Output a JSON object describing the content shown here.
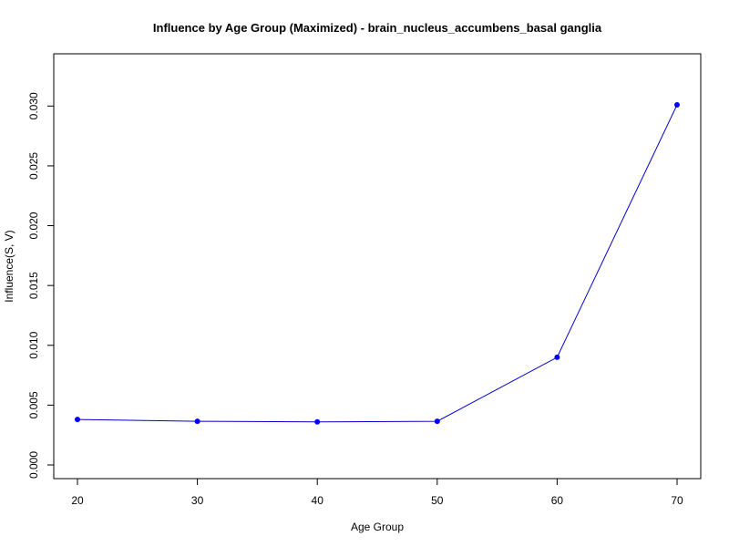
{
  "chart_data": {
    "type": "line",
    "title": "Influence by Age Group (Maximized) - brain_nucleus_accumbens_basal ganglia",
    "xlabel": "Age Group",
    "ylabel": "Influence(S, V)",
    "x": [
      20,
      30,
      40,
      50,
      60,
      70
    ],
    "series": [
      {
        "values": [
          0.0038,
          0.00365,
          0.0036,
          0.00365,
          0.009,
          0.0301
        ]
      }
    ],
    "xlim": [
      20,
      70
    ],
    "ylim": [
      0.0,
      0.0301
    ],
    "xticks": [
      "20",
      "30",
      "40",
      "50",
      "60",
      "70"
    ],
    "yticks": [
      "0.000",
      "0.005",
      "0.010",
      "0.015",
      "0.020",
      "0.025",
      "0.030"
    ],
    "grid": false,
    "legend": "none",
    "line_color": "#0000CD",
    "marker_color": "#0000FF"
  }
}
